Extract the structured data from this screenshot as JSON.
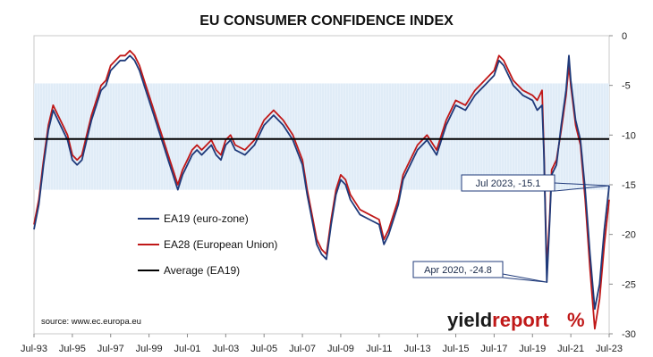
{
  "chart_data": {
    "type": "line",
    "title": "EU CONSUMER CONFIDENCE INDEX",
    "ylim": [
      -30,
      0
    ],
    "yticks": [
      0,
      -5,
      -10,
      -15,
      -20,
      -25,
      -30
    ],
    "ytick_labels": [
      "0",
      "-5",
      "-10",
      "-15",
      "-20",
      "-25",
      "-30"
    ],
    "xlim": [
      "1993-07",
      "2023-07"
    ],
    "xtick_labels": [
      "Jul-93",
      "Jul-95",
      "Jul-97",
      "Jul-99",
      "Jul-01",
      "Jul-03",
      "Jul-05",
      "Jul-07",
      "Jul-09",
      "Jul-11",
      "Jul-13",
      "Jul-15",
      "Jul-17",
      "Jul-19",
      "Jul-21",
      "Jul-23"
    ],
    "xtick_years": [
      1993.5,
      1995.5,
      1997.5,
      1999.5,
      2001.5,
      2003.5,
      2005.5,
      2007.5,
      2009.5,
      2011.5,
      2013.5,
      2015.5,
      2017.5,
      2019.5,
      2021.5,
      2023.5
    ],
    "grid": false,
    "shaded_band": {
      "from": -15.5,
      "to": -4.8,
      "color": "#cfe0f0"
    },
    "legend_position": "left-center",
    "series": [
      {
        "name": "EA19 (euro-zone)",
        "color": "#1f3a7a",
        "x": [
          1993.5,
          1993.75,
          1994.0,
          1994.25,
          1994.5,
          1994.75,
          1995.0,
          1995.25,
          1995.5,
          1995.75,
          1996.0,
          1996.25,
          1996.5,
          1996.75,
          1997.0,
          1997.25,
          1997.5,
          1997.75,
          1998.0,
          1998.25,
          1998.5,
          1998.75,
          1999.0,
          1999.25,
          1999.5,
          1999.75,
          2000.0,
          2000.25,
          2000.5,
          2000.75,
          2001.0,
          2001.25,
          2001.5,
          2001.75,
          2002.0,
          2002.25,
          2002.5,
          2002.75,
          2003.0,
          2003.25,
          2003.5,
          2003.75,
          2004.0,
          2004.5,
          2005.0,
          2005.5,
          2006.0,
          2006.5,
          2007.0,
          2007.5,
          2007.75,
          2008.0,
          2008.25,
          2008.5,
          2008.75,
          2009.0,
          2009.25,
          2009.5,
          2009.75,
          2010.0,
          2010.5,
          2011.0,
          2011.5,
          2011.75,
          2012.0,
          2012.5,
          2012.75,
          2013.0,
          2013.5,
          2014.0,
          2014.5,
          2015.0,
          2015.5,
          2016.0,
          2016.5,
          2017.0,
          2017.5,
          2017.75,
          2018.0,
          2018.5,
          2019.0,
          2019.5,
          2019.75,
          2020.0,
          2020.1,
          2020.25,
          2020.4,
          2020.5,
          2020.75,
          2021.0,
          2021.25,
          2021.4,
          2021.5,
          2021.75,
          2022.0,
          2022.25,
          2022.5,
          2022.75,
          2023.0,
          2023.25,
          2023.5
        ],
        "y": [
          -19.5,
          -17.0,
          -13.0,
          -9.5,
          -7.5,
          -8.5,
          -9.5,
          -10.5,
          -12.5,
          -13.0,
          -12.5,
          -10.5,
          -8.5,
          -7.0,
          -5.5,
          -5.0,
          -3.5,
          -3.0,
          -2.5,
          -2.5,
          -2.0,
          -2.5,
          -3.5,
          -5.0,
          -6.5,
          -8.0,
          -9.5,
          -11.0,
          -12.5,
          -14.0,
          -15.5,
          -14.0,
          -13.0,
          -12.0,
          -11.5,
          -12.0,
          -11.5,
          -11.0,
          -12.0,
          -12.5,
          -11.0,
          -10.5,
          -11.5,
          -12.0,
          -11.0,
          -9.0,
          -8.0,
          -9.0,
          -10.5,
          -13.0,
          -16.0,
          -18.5,
          -21.0,
          -22.0,
          -22.5,
          -19.0,
          -16.0,
          -14.5,
          -15.0,
          -16.5,
          -18.0,
          -18.5,
          -19.0,
          -21.0,
          -20.0,
          -17.0,
          -14.5,
          -13.5,
          -11.5,
          -10.5,
          -12.0,
          -9.0,
          -7.0,
          -7.5,
          -6.0,
          -5.0,
          -4.0,
          -2.5,
          -3.0,
          -5.0,
          -6.0,
          -6.5,
          -7.5,
          -7.0,
          -12.0,
          -24.8,
          -18.5,
          -14.0,
          -13.0,
          -9.0,
          -5.5,
          -2.0,
          -4.5,
          -8.5,
          -10.5,
          -15.5,
          -22.0,
          -27.5,
          -25.0,
          -19.5,
          -15.1
        ]
      },
      {
        "name": "EA28 (European Union)",
        "color": "#c01818",
        "x": [
          1993.5,
          1993.75,
          1994.0,
          1994.25,
          1994.5,
          1994.75,
          1995.0,
          1995.25,
          1995.5,
          1995.75,
          1996.0,
          1996.25,
          1996.5,
          1996.75,
          1997.0,
          1997.25,
          1997.5,
          1997.75,
          1998.0,
          1998.25,
          1998.5,
          1998.75,
          1999.0,
          1999.25,
          1999.5,
          1999.75,
          2000.0,
          2000.25,
          2000.5,
          2000.75,
          2001.0,
          2001.25,
          2001.5,
          2001.75,
          2002.0,
          2002.25,
          2002.5,
          2002.75,
          2003.0,
          2003.25,
          2003.5,
          2003.75,
          2004.0,
          2004.5,
          2005.0,
          2005.5,
          2006.0,
          2006.5,
          2007.0,
          2007.5,
          2007.75,
          2008.0,
          2008.25,
          2008.5,
          2008.75,
          2009.0,
          2009.25,
          2009.5,
          2009.75,
          2010.0,
          2010.5,
          2011.0,
          2011.5,
          2011.75,
          2012.0,
          2012.5,
          2012.75,
          2013.0,
          2013.5,
          2014.0,
          2014.5,
          2015.0,
          2015.5,
          2016.0,
          2016.5,
          2017.0,
          2017.5,
          2017.75,
          2018.0,
          2018.5,
          2019.0,
          2019.5,
          2019.75,
          2020.0,
          2020.1,
          2020.25,
          2020.4,
          2020.5,
          2020.75,
          2021.0,
          2021.25,
          2021.4,
          2021.5,
          2021.75,
          2022.0,
          2022.25,
          2022.5,
          2022.75,
          2023.0,
          2023.25,
          2023.5
        ],
        "y": [
          -19.0,
          -16.5,
          -12.5,
          -9.0,
          -7.0,
          -8.0,
          -9.0,
          -10.0,
          -12.0,
          -12.5,
          -12.0,
          -10.0,
          -8.0,
          -6.5,
          -5.0,
          -4.5,
          -3.0,
          -2.5,
          -2.0,
          -2.0,
          -1.5,
          -2.0,
          -3.0,
          -4.5,
          -6.0,
          -7.5,
          -9.0,
          -10.5,
          -12.0,
          -13.5,
          -15.0,
          -13.5,
          -12.5,
          -11.5,
          -11.0,
          -11.5,
          -11.0,
          -10.5,
          -11.5,
          -12.0,
          -10.5,
          -10.0,
          -11.0,
          -11.5,
          -10.5,
          -8.5,
          -7.5,
          -8.5,
          -10.0,
          -12.5,
          -15.5,
          -18.0,
          -20.5,
          -21.5,
          -22.0,
          -18.5,
          -15.5,
          -14.0,
          -14.5,
          -16.0,
          -17.5,
          -18.0,
          -18.5,
          -20.5,
          -19.5,
          -16.5,
          -14.0,
          -13.0,
          -11.0,
          -10.0,
          -11.5,
          -8.5,
          -6.5,
          -7.0,
          -5.5,
          -4.5,
          -3.5,
          -2.0,
          -2.5,
          -4.5,
          -5.5,
          -6.0,
          -6.5,
          -5.5,
          -11.5,
          -23.5,
          -18.0,
          -13.5,
          -12.5,
          -9.5,
          -6.0,
          -3.0,
          -5.0,
          -9.0,
          -11.0,
          -16.5,
          -23.5,
          -29.5,
          -26.5,
          -21.0,
          -16.5
        ]
      },
      {
        "name": "Average (EA19)",
        "color": "#000000",
        "x": [
          1993.5,
          2023.5
        ],
        "y": [
          -10.4,
          -10.4
        ]
      }
    ],
    "annotations": [
      {
        "label": "Jul 2023, -15.1",
        "x": 2023.5,
        "y": -15.1
      },
      {
        "label": "Apr 2020, -24.8",
        "x": 2020.25,
        "y": -24.8
      }
    ],
    "source": "source: www.ec.europa.eu",
    "brand": {
      "text_dark": "yield",
      "text_red": "report",
      "symbol": "%",
      "dark_color": "#1a1a1a",
      "red_color": "#c01818"
    }
  }
}
